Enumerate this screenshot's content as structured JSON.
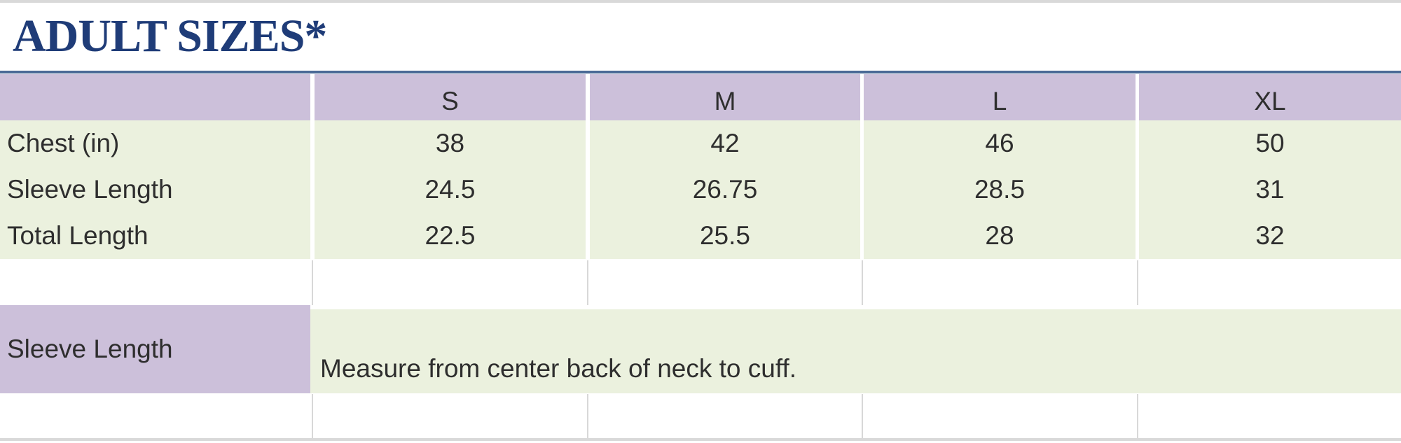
{
  "title": "ADULT SIZES*",
  "table": {
    "columns": [
      "",
      "S",
      "M",
      "L",
      "XL"
    ],
    "rows": [
      {
        "label": "Chest (in)",
        "values": [
          "38",
          "42",
          "46",
          "50"
        ]
      },
      {
        "label": "Sleeve Length",
        "values": [
          "24.5",
          "26.75",
          "28.5",
          "31"
        ]
      },
      {
        "label": "Total Length",
        "values": [
          "22.5",
          "25.5",
          "28",
          "32"
        ]
      }
    ]
  },
  "note": {
    "label": "Sleeve Length",
    "text": "Measure from center back of neck to cuff."
  },
  "colors": {
    "title": "#1f3c78",
    "header_fill": "#ccc0da",
    "data_fill": "#ebf1de",
    "rule": "#4a6a96"
  }
}
